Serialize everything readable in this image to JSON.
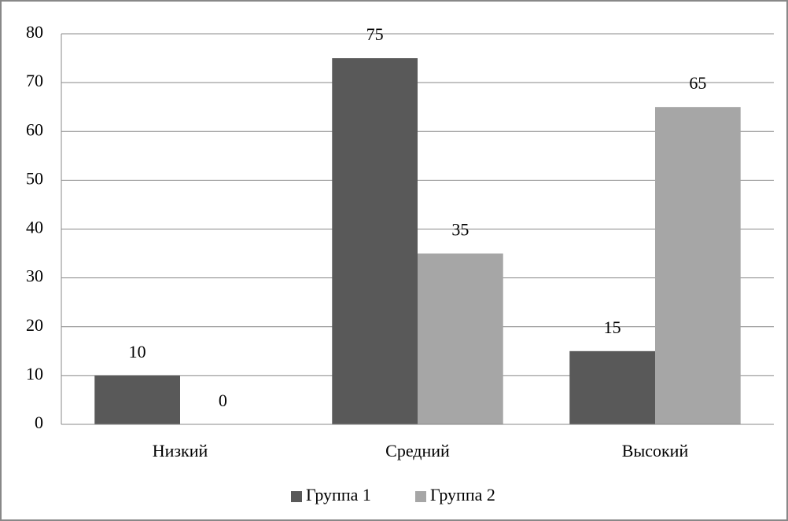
{
  "chart_data": {
    "type": "bar",
    "categories": [
      "Низкий",
      "Средний",
      "Высокий"
    ],
    "series": [
      {
        "name": "Группа 1",
        "color": "#595959",
        "values": [
          10,
          75,
          15
        ]
      },
      {
        "name": "Группа 2",
        "color": "#a6a6a6",
        "values": [
          0,
          35,
          65
        ]
      }
    ],
    "ylim": [
      0,
      80
    ],
    "yticks": [
      0,
      10,
      20,
      30,
      40,
      50,
      60,
      70,
      80
    ],
    "grid": true,
    "legend": "bottom"
  }
}
